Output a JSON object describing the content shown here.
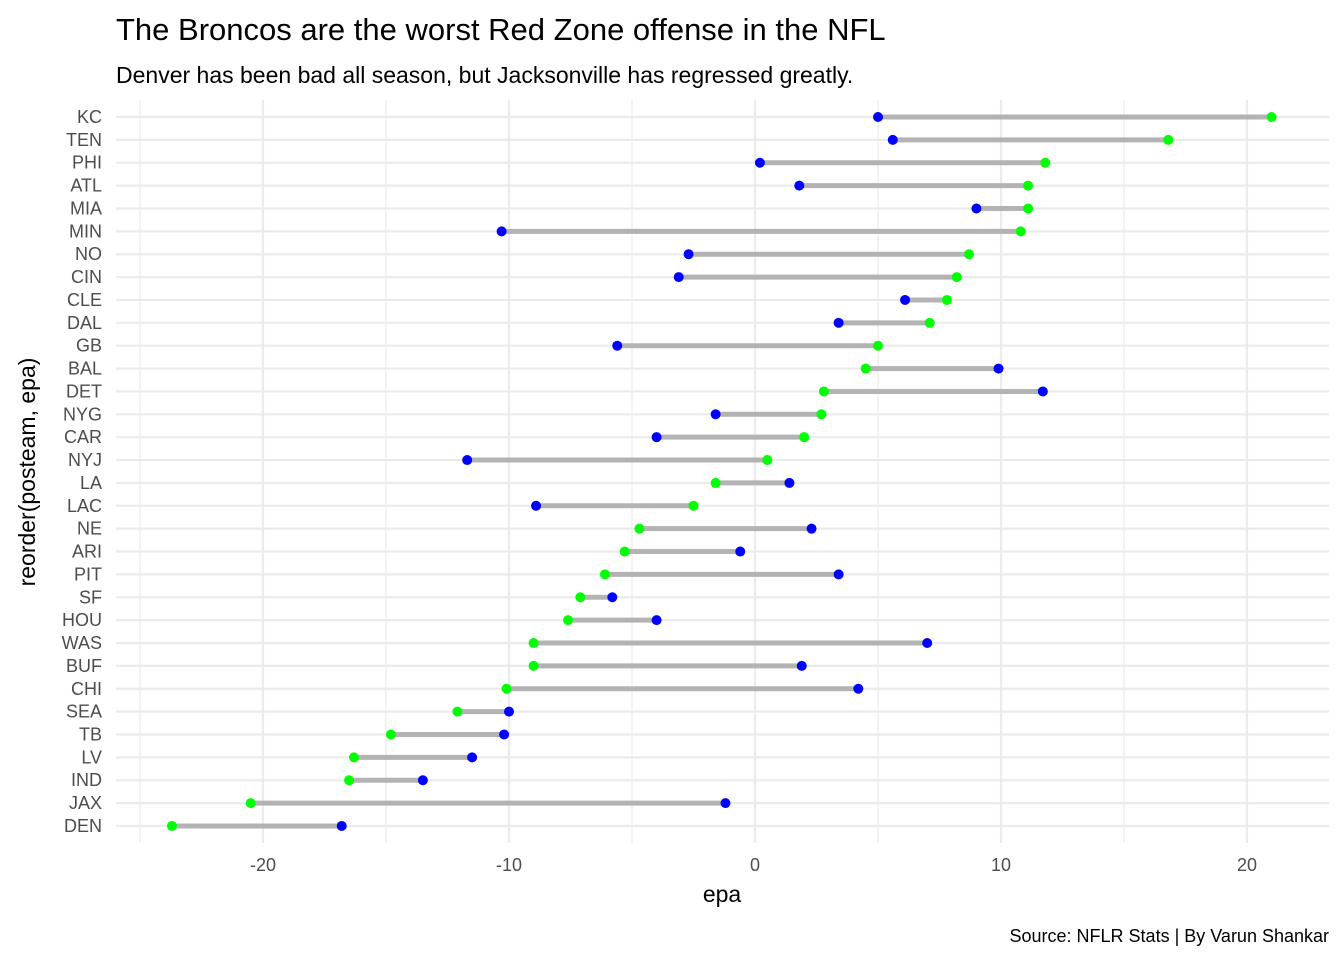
{
  "chart_data": {
    "type": "dumbbell",
    "title": "The Broncos are the worst Red Zone offense in the NFL",
    "subtitle": "Denver has been bad all season, but Jacksonville has regressed greatly.",
    "xlabel": "epa",
    "ylabel": "reorder(posteam, epa)",
    "caption": "Source: NFLR Stats | By Varun Shankar",
    "xlim": [
      -25.5,
      23.2
    ],
    "x_ticks": [
      -20,
      -10,
      0,
      10,
      20
    ],
    "grid": true,
    "colors": {
      "green_point": "#00ff00",
      "blue_point": "#0000ff",
      "segment": "#b3b3b3"
    },
    "teams": [
      {
        "team": "KC",
        "green": 21.0,
        "blue": 5.0
      },
      {
        "team": "TEN",
        "green": 16.8,
        "blue": 5.6
      },
      {
        "team": "PHI",
        "green": 11.8,
        "blue": 0.2
      },
      {
        "team": "ATL",
        "green": 11.1,
        "blue": 1.8
      },
      {
        "team": "MIA",
        "green": 11.1,
        "blue": 9.0
      },
      {
        "team": "MIN",
        "green": 10.8,
        "blue": -10.3
      },
      {
        "team": "NO",
        "green": 8.7,
        "blue": -2.7
      },
      {
        "team": "CIN",
        "green": 8.2,
        "blue": -3.1
      },
      {
        "team": "CLE",
        "green": 7.8,
        "blue": 6.1
      },
      {
        "team": "DAL",
        "green": 7.1,
        "blue": 3.4
      },
      {
        "team": "GB",
        "green": 5.0,
        "blue": -5.6
      },
      {
        "team": "BAL",
        "green": 4.5,
        "blue": 9.9
      },
      {
        "team": "DET",
        "green": 2.8,
        "blue": 11.7
      },
      {
        "team": "NYG",
        "green": 2.7,
        "blue": -1.6
      },
      {
        "team": "CAR",
        "green": 2.0,
        "blue": -4.0
      },
      {
        "team": "NYJ",
        "green": 0.5,
        "blue": -11.7
      },
      {
        "team": "LA",
        "green": -1.6,
        "blue": 1.4
      },
      {
        "team": "LAC",
        "green": -2.5,
        "blue": -8.9
      },
      {
        "team": "NE",
        "green": -4.7,
        "blue": 2.3
      },
      {
        "team": "ARI",
        "green": -5.3,
        "blue": -0.6
      },
      {
        "team": "PIT",
        "green": -6.1,
        "blue": 3.4
      },
      {
        "team": "SF",
        "green": -7.1,
        "blue": -5.8
      },
      {
        "team": "HOU",
        "green": -7.6,
        "blue": -4.0
      },
      {
        "team": "WAS",
        "green": -9.0,
        "blue": 7.0
      },
      {
        "team": "BUF",
        "green": -9.0,
        "blue": 1.9
      },
      {
        "team": "CHI",
        "green": -10.1,
        "blue": 4.2
      },
      {
        "team": "SEA",
        "green": -12.1,
        "blue": -10.0
      },
      {
        "team": "TB",
        "green": -14.8,
        "blue": -10.2
      },
      {
        "team": "LV",
        "green": -16.3,
        "blue": -11.5
      },
      {
        "team": "IND",
        "green": -16.5,
        "blue": -13.5
      },
      {
        "team": "JAX",
        "green": -20.5,
        "blue": -1.2
      },
      {
        "team": "DEN",
        "green": -23.7,
        "blue": -16.8
      }
    ]
  }
}
